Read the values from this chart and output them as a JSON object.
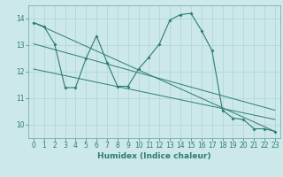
{
  "title": "",
  "xlabel": "Humidex (Indice chaleur)",
  "ylabel": "",
  "bg_color": "#cce8e8",
  "line_color": "#2d7d6e",
  "grid_color": "#add4d4",
  "xlim": [
    -0.5,
    23.5
  ],
  "ylim": [
    9.5,
    14.5
  ],
  "yticks": [
    10,
    11,
    12,
    13,
    14
  ],
  "xticks": [
    0,
    1,
    2,
    3,
    4,
    5,
    6,
    7,
    8,
    9,
    10,
    11,
    12,
    13,
    14,
    15,
    16,
    17,
    18,
    19,
    20,
    21,
    22,
    23
  ],
  "series1_x": [
    0,
    1,
    2,
    3,
    4,
    5,
    6,
    7,
    8,
    9,
    10,
    11,
    12,
    13,
    14,
    15,
    16,
    17,
    18,
    19,
    20,
    21,
    22,
    23
  ],
  "series1_y": [
    13.85,
    13.7,
    13.05,
    11.4,
    11.4,
    12.5,
    13.35,
    12.35,
    11.45,
    11.45,
    12.1,
    12.55,
    13.05,
    13.95,
    14.15,
    14.2,
    13.55,
    12.8,
    10.55,
    10.25,
    10.2,
    9.85,
    9.85,
    9.75
  ],
  "series2_x": [
    0,
    23
  ],
  "series2_y": [
    13.85,
    9.75
  ],
  "series3_x": [
    0,
    23
  ],
  "series3_y": [
    13.05,
    10.55
  ],
  "series4_x": [
    0,
    23
  ],
  "series4_y": [
    12.1,
    10.2
  ]
}
